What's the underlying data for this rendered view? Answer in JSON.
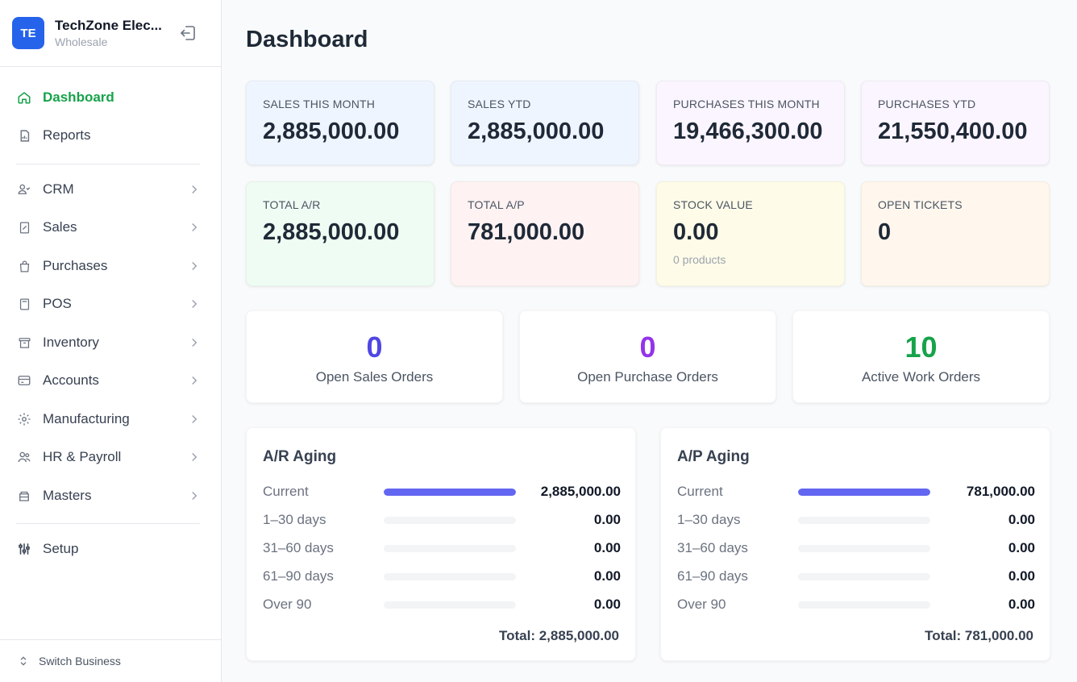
{
  "brand": {
    "initials": "TE",
    "name": "TechZone Elec...",
    "subtitle": "Wholesale"
  },
  "nav": {
    "dashboard": "Dashboard",
    "reports": "Reports",
    "crm": "CRM",
    "sales": "Sales",
    "purchases": "Purchases",
    "pos": "POS",
    "inventory": "Inventory",
    "accounts": "Accounts",
    "manufacturing": "Manufacturing",
    "hr": "HR & Payroll",
    "masters": "Masters",
    "setup": "Setup",
    "switch_business": "Switch Business"
  },
  "page": {
    "title": "Dashboard"
  },
  "stats": [
    {
      "label": "SALES THIS MONTH",
      "value": "2,885,000.00",
      "bg": "#eef5fe"
    },
    {
      "label": "SALES YTD",
      "value": "2,885,000.00",
      "bg": "#eef5fe"
    },
    {
      "label": "PURCHASES THIS MONTH",
      "value": "19,466,300.00",
      "bg": "#faf5fe"
    },
    {
      "label": "PURCHASES YTD",
      "value": "21,550,400.00",
      "bg": "#faf5fe"
    },
    {
      "label": "TOTAL A/R",
      "value": "2,885,000.00",
      "bg": "#effcf3"
    },
    {
      "label": "TOTAL A/P",
      "value": "781,000.00",
      "bg": "#fef2f2"
    },
    {
      "label": "STOCK VALUE",
      "value": "0.00",
      "sub": "0 products",
      "bg": "#fefce8"
    },
    {
      "label": "OPEN TICKETS",
      "value": "0",
      "bg": "#fff7ed"
    }
  ],
  "counts": [
    {
      "value": "0",
      "label": "Open Sales Orders",
      "color": "#4f46e5"
    },
    {
      "value": "0",
      "label": "Open Purchase Orders",
      "color": "#9333ea"
    },
    {
      "value": "10",
      "label": "Active Work Orders",
      "color": "#16a34a"
    }
  ],
  "ar_aging": {
    "title": "A/R Aging",
    "rows": [
      {
        "label": "Current",
        "value": "2,885,000.00",
        "fraction": 1.0
      },
      {
        "label": "1–30 days",
        "value": "0.00",
        "fraction": 0
      },
      {
        "label": "31–60 days",
        "value": "0.00",
        "fraction": 0
      },
      {
        "label": "61–90 days",
        "value": "0.00",
        "fraction": 0
      },
      {
        "label": "Over 90",
        "value": "0.00",
        "fraction": 0
      }
    ],
    "total": "Total: 2,885,000.00"
  },
  "ap_aging": {
    "title": "A/P Aging",
    "rows": [
      {
        "label": "Current",
        "value": "781,000.00",
        "fraction": 1.0
      },
      {
        "label": "1–30 days",
        "value": "0.00",
        "fraction": 0
      },
      {
        "label": "31–60 days",
        "value": "0.00",
        "fraction": 0
      },
      {
        "label": "61–90 days",
        "value": "0.00",
        "fraction": 0
      },
      {
        "label": "Over 90",
        "value": "0.00",
        "fraction": 0
      }
    ],
    "total": "Total: 781,000.00"
  },
  "colors": {
    "accent": "#2563eb",
    "active_nav": "#16a34a",
    "bar_fill": "#6366f1"
  }
}
